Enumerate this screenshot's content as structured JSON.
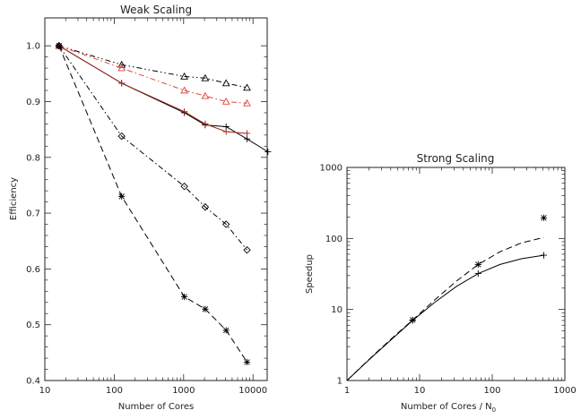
{
  "chart_data": [
    {
      "type": "line",
      "title": "Weak Scaling",
      "xlabel": "Number of Cores",
      "ylabel": "Efficiency",
      "xscale": "log",
      "yscale": "linear",
      "xlim": [
        10,
        16000
      ],
      "ylim": [
        0.4,
        1.05
      ],
      "xtick_labels": [
        "10",
        "100",
        "1000",
        "10000"
      ],
      "ytick_labels": [
        "0.4",
        "0.5",
        "0.6",
        "0.7",
        "0.8",
        "0.9",
        "1.0"
      ],
      "grid": false,
      "series": [
        {
          "color": "#000000",
          "dash": "6 3 1.5 3 1.5 3",
          "marker": "triangle",
          "x": [
            16,
            128,
            1024,
            2048,
            4096,
            8192
          ],
          "y": [
            1.0,
            0.966,
            0.945,
            0.942,
            0.933,
            0.925
          ]
        },
        {
          "color": "#e0463c",
          "dash": "6 3 1.5 3",
          "marker": "triangle",
          "x": [
            16,
            128,
            1024,
            2048,
            4096,
            8192
          ],
          "y": [
            1.0,
            0.96,
            0.92,
            0.91,
            0.9,
            0.897
          ]
        },
        {
          "color": "#000000",
          "dash": "",
          "marker": "plus",
          "x": [
            16,
            128,
            1024,
            2048,
            4096,
            8192,
            16384
          ],
          "y": [
            1.0,
            0.933,
            0.88,
            0.858,
            0.855,
            0.833,
            0.81
          ]
        },
        {
          "color": "#a0241e",
          "dash": "",
          "marker": "plus",
          "x": [
            16,
            128,
            1024,
            2048,
            4096,
            8192
          ],
          "y": [
            1.0,
            0.933,
            0.882,
            0.86,
            0.846,
            0.843
          ]
        },
        {
          "color": "#000000",
          "dash": "6 3 1.5 3",
          "marker": "diamond",
          "x": [
            16,
            128,
            1024,
            2048,
            4096,
            8192
          ],
          "y": [
            1.0,
            0.838,
            0.748,
            0.711,
            0.68,
            0.634
          ]
        },
        {
          "color": "#000000",
          "dash": "7 4",
          "marker": "asterisk",
          "x": [
            16,
            128,
            1024,
            2048,
            4096,
            8192
          ],
          "y": [
            1.0,
            0.73,
            0.55,
            0.528,
            0.49,
            0.433
          ]
        }
      ]
    },
    {
      "type": "line",
      "title": "Strong Scaling",
      "xlabel": "Number of Cores / N",
      "xlabel_subscript": "0",
      "ylabel": "Speedup",
      "xscale": "log",
      "yscale": "log",
      "xlim": [
        1,
        1000
      ],
      "ylim": [
        1,
        1000
      ],
      "xtick_labels": [
        "1",
        "10",
        "100",
        "1000"
      ],
      "ytick_labels": [
        "1",
        "10",
        "100",
        "1000"
      ],
      "grid": false,
      "series": [
        {
          "color": "#000000",
          "dash": "",
          "marker": "plus",
          "x": [
            1,
            2,
            4,
            8,
            16,
            32,
            64,
            128,
            256,
            512
          ],
          "y": [
            1,
            1.95,
            3.7,
            7.0,
            12.5,
            21,
            32,
            43,
            52,
            58
          ],
          "markers_at": [
            8,
            64,
            512
          ]
        },
        {
          "color": "#000000",
          "dash": "7 4",
          "marker": "asterisk",
          "x": [
            1,
            2,
            4,
            8,
            16,
            32,
            64,
            128,
            256,
            512
          ],
          "y": [
            1,
            1.97,
            3.8,
            7.1,
            13.5,
            25,
            43,
            65,
            87,
            103
          ],
          "markers_at": [
            8,
            64
          ]
        },
        {
          "color": "#000000",
          "dash": "",
          "marker": "asterisk",
          "x": [
            512
          ],
          "y": [
            195
          ],
          "markers_at": [
            512
          ],
          "no_line": true
        }
      ]
    }
  ]
}
